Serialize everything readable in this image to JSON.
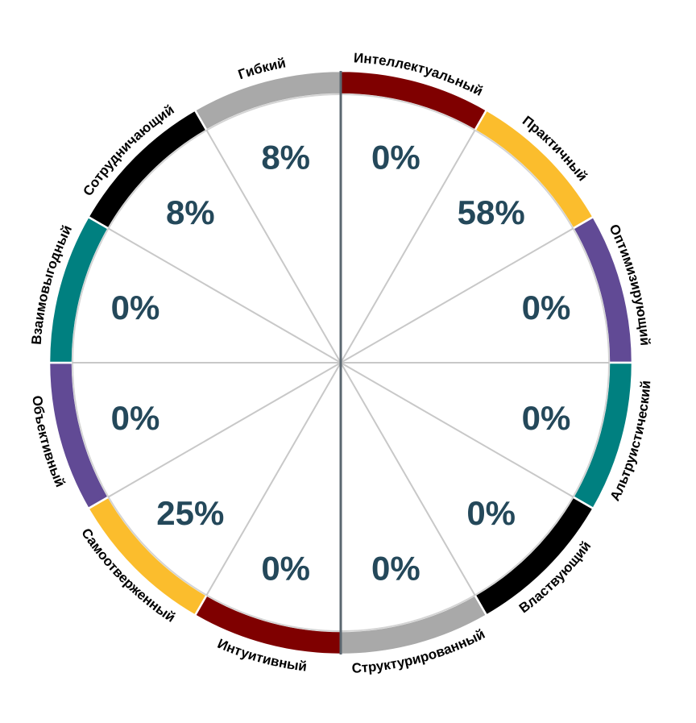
{
  "chart_data": {
    "type": "pie",
    "segments": [
      {
        "label": "Интеллектуальный",
        "value": "0%",
        "color": "#7f0000"
      },
      {
        "label": "Практичный",
        "value": "58%",
        "color": "#fbbd2d"
      },
      {
        "label": "Оптимизирующий",
        "value": "0%",
        "color": "#614a95"
      },
      {
        "label": "Альтруистический",
        "value": "0%",
        "color": "#008080"
      },
      {
        "label": "Властвующий",
        "value": "0%",
        "color": "#000000"
      },
      {
        "label": "Структурированный",
        "value": "0%",
        "color": "#a9a9a9"
      },
      {
        "label": "Интуитивный",
        "value": "0%",
        "color": "#7f0000"
      },
      {
        "label": "Самоотверженный",
        "value": "25%",
        "color": "#fbbd2d"
      },
      {
        "label": "Объективный",
        "value": "0%",
        "color": "#614a95"
      },
      {
        "label": "Взаимовыгодный",
        "value": "0%",
        "color": "#008080"
      },
      {
        "label": "Сотрудничающий",
        "value": "8%",
        "color": "#000000"
      },
      {
        "label": "Гибкий",
        "value": "8%",
        "color": "#a9a9a9"
      }
    ],
    "value_color": "#24485a",
    "divider_color": "#c8c8c8",
    "axis_color": "#5b6770"
  }
}
